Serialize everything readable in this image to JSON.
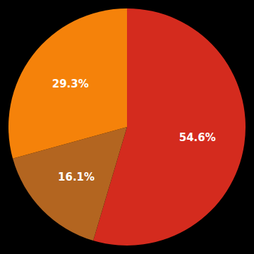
{
  "chart_data": {
    "type": "pie",
    "values": [
      54.6,
      16.1,
      29.3
    ],
    "value_labels": [
      "54.6%",
      "16.1%",
      "29.3%"
    ],
    "colors": [
      "#d42b1e",
      "#b36520",
      "#f5820a"
    ],
    "data_labels": true
  }
}
